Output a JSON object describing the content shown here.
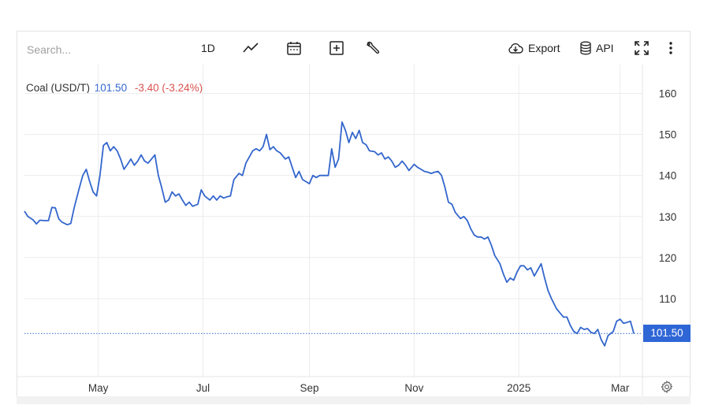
{
  "toolbar": {
    "search_placeholder": "Search...",
    "interval_label": "1D",
    "export_label": "Export",
    "api_label": "API",
    "icons": [
      "line-chart-icon",
      "calendar-icon",
      "add-box-icon",
      "wrench-icon",
      "cloud-download-icon",
      "database-icon",
      "fullscreen-icon",
      "more-vertical-icon",
      "gear-icon"
    ]
  },
  "legend": {
    "name": "Coal (USD/T)",
    "price": "101.50",
    "change": "-3.40 (-3.24%)"
  },
  "price_tag": "101.50",
  "colors": {
    "line": "#3366cc",
    "negative": "#d9534f",
    "price_tag_bg": "#2f66d6",
    "grid": "#ececec"
  },
  "chart_data": {
    "type": "line",
    "title": "",
    "xlabel": "",
    "ylabel": "",
    "ylim": [
      91,
      167
    ],
    "yticks": [
      110,
      120,
      130,
      140,
      150,
      160
    ],
    "xlim": [
      "2024-03-19",
      "2025-03-14"
    ],
    "xticks": [
      {
        "label": "May",
        "date": "2024-05-01"
      },
      {
        "label": "Jul",
        "date": "2024-07-01"
      },
      {
        "label": "Sep",
        "date": "2024-09-01"
      },
      {
        "label": "Nov",
        "date": "2024-11-01"
      },
      {
        "label": "2025",
        "date": "2025-01-01"
      },
      {
        "label": "Mar",
        "date": "2025-03-01"
      }
    ],
    "last_value": 101.5,
    "grid": true,
    "series": [
      {
        "name": "",
        "points": [
          [
            "2024-03-19",
            131.3
          ],
          [
            "2024-03-21",
            130.0
          ],
          [
            "2024-03-24",
            129.2
          ],
          [
            "2024-03-26",
            128.2
          ],
          [
            "2024-03-28",
            129.1
          ],
          [
            "2024-03-31",
            129.0
          ],
          [
            "2024-04-02",
            129.0
          ],
          [
            "2024-04-04",
            132.2
          ],
          [
            "2024-04-06",
            132.1
          ],
          [
            "2024-04-08",
            129.4
          ],
          [
            "2024-04-10",
            128.6
          ],
          [
            "2024-04-13",
            128.0
          ],
          [
            "2024-04-15",
            128.3
          ],
          [
            "2024-04-17",
            132.2
          ],
          [
            "2024-04-20",
            137.0
          ],
          [
            "2024-04-22",
            140.0
          ],
          [
            "2024-04-24",
            141.5
          ],
          [
            "2024-04-26",
            138.5
          ],
          [
            "2024-04-28",
            136.0
          ],
          [
            "2024-04-30",
            135.0
          ],
          [
            "2024-05-02",
            140.0
          ],
          [
            "2024-05-04",
            147.3
          ],
          [
            "2024-05-06",
            148.0
          ],
          [
            "2024-05-08",
            146.0
          ],
          [
            "2024-05-10",
            147.0
          ],
          [
            "2024-05-12",
            146.0
          ],
          [
            "2024-05-14",
            144.0
          ],
          [
            "2024-05-16",
            141.5
          ],
          [
            "2024-05-18",
            142.7
          ],
          [
            "2024-05-20",
            144.0
          ],
          [
            "2024-05-22",
            142.5
          ],
          [
            "2024-05-24",
            143.5
          ],
          [
            "2024-05-26",
            145.0
          ],
          [
            "2024-05-28",
            143.5
          ],
          [
            "2024-05-30",
            143.0
          ],
          [
            "2024-06-01",
            144.0
          ],
          [
            "2024-06-03",
            145.0
          ],
          [
            "2024-06-05",
            140.0
          ],
          [
            "2024-06-07",
            137.0
          ],
          [
            "2024-06-09",
            133.5
          ],
          [
            "2024-06-11",
            134.0
          ],
          [
            "2024-06-13",
            136.0
          ],
          [
            "2024-06-15",
            135.0
          ],
          [
            "2024-06-17",
            135.5
          ],
          [
            "2024-06-19",
            134.0
          ],
          [
            "2024-06-21",
            132.7
          ],
          [
            "2024-06-23",
            133.5
          ],
          [
            "2024-06-25",
            132.5
          ],
          [
            "2024-06-28",
            133.0
          ],
          [
            "2024-06-30",
            136.5
          ],
          [
            "2024-07-02",
            135.0
          ],
          [
            "2024-07-05",
            134.0
          ],
          [
            "2024-07-07",
            135.0
          ],
          [
            "2024-07-09",
            134.0
          ],
          [
            "2024-07-11",
            135.0
          ],
          [
            "2024-07-13",
            134.5
          ],
          [
            "2024-07-15",
            134.8
          ],
          [
            "2024-07-17",
            135.0
          ],
          [
            "2024-07-19",
            139.0
          ],
          [
            "2024-07-22",
            140.5
          ],
          [
            "2024-07-24",
            140.0
          ],
          [
            "2024-07-26",
            143.0
          ],
          [
            "2024-07-28",
            144.5
          ],
          [
            "2024-07-30",
            146.0
          ],
          [
            "2024-08-01",
            146.5
          ],
          [
            "2024-08-03",
            146.0
          ],
          [
            "2024-08-05",
            147.0
          ],
          [
            "2024-08-07",
            150.0
          ],
          [
            "2024-08-09",
            146.3
          ],
          [
            "2024-08-11",
            147.0
          ],
          [
            "2024-08-13",
            146.0
          ],
          [
            "2024-08-15",
            145.5
          ],
          [
            "2024-08-18",
            144.0
          ],
          [
            "2024-08-20",
            144.5
          ],
          [
            "2024-08-22",
            142.0
          ],
          [
            "2024-08-24",
            139.5
          ],
          [
            "2024-08-26",
            141.0
          ],
          [
            "2024-08-28",
            139.0
          ],
          [
            "2024-08-30",
            138.5
          ],
          [
            "2024-09-01",
            138.0
          ],
          [
            "2024-09-03",
            140.0
          ],
          [
            "2024-09-05",
            139.5
          ],
          [
            "2024-09-07",
            140.0
          ],
          [
            "2024-09-09",
            140.0
          ],
          [
            "2024-09-12",
            140.0
          ],
          [
            "2024-09-14",
            146.5
          ],
          [
            "2024-09-16",
            142.0
          ],
          [
            "2024-09-18",
            144.0
          ],
          [
            "2024-09-20",
            153.0
          ],
          [
            "2024-09-22",
            151.0
          ],
          [
            "2024-09-24",
            148.0
          ],
          [
            "2024-09-26",
            150.5
          ],
          [
            "2024-09-28",
            149.0
          ],
          [
            "2024-09-30",
            151.0
          ],
          [
            "2024-10-02",
            148.0
          ],
          [
            "2024-10-04",
            147.5
          ],
          [
            "2024-10-06",
            146.0
          ],
          [
            "2024-10-09",
            145.8
          ],
          [
            "2024-10-11",
            145.0
          ],
          [
            "2024-10-13",
            145.5
          ],
          [
            "2024-10-15",
            144.0
          ],
          [
            "2024-10-17",
            144.5
          ],
          [
            "2024-10-19",
            143.5
          ],
          [
            "2024-10-21",
            142.0
          ],
          [
            "2024-10-23",
            142.5
          ],
          [
            "2024-10-25",
            143.5
          ],
          [
            "2024-10-27",
            142.5
          ],
          [
            "2024-10-29",
            141.2
          ],
          [
            "2024-11-01",
            142.7
          ],
          [
            "2024-11-03",
            142.0
          ],
          [
            "2024-11-05",
            141.5
          ],
          [
            "2024-11-07",
            141.0
          ],
          [
            "2024-11-09",
            140.8
          ],
          [
            "2024-11-11",
            140.5
          ],
          [
            "2024-11-13",
            140.8
          ],
          [
            "2024-11-15",
            141.0
          ],
          [
            "2024-11-17",
            140.0
          ],
          [
            "2024-11-19",
            137.0
          ],
          [
            "2024-11-21",
            133.5
          ],
          [
            "2024-11-23",
            133.0
          ],
          [
            "2024-11-25",
            131.0
          ],
          [
            "2024-11-28",
            129.5
          ],
          [
            "2024-11-30",
            130.0
          ],
          [
            "2024-12-02",
            129.0
          ],
          [
            "2024-12-04",
            127.0
          ],
          [
            "2024-12-06",
            125.5
          ],
          [
            "2024-12-08",
            125.0
          ],
          [
            "2024-12-10",
            125.0
          ],
          [
            "2024-12-12",
            124.5
          ],
          [
            "2024-12-14",
            125.0
          ],
          [
            "2024-12-16",
            123.0
          ],
          [
            "2024-12-18",
            120.5
          ],
          [
            "2024-12-21",
            118.5
          ],
          [
            "2024-12-23",
            116.0
          ],
          [
            "2024-12-25",
            114.0
          ],
          [
            "2024-12-27",
            115.0
          ],
          [
            "2024-12-29",
            114.5
          ],
          [
            "2024-12-31",
            116.5
          ],
          [
            "2025-01-02",
            118.0
          ],
          [
            "2025-01-04",
            118.0
          ],
          [
            "2025-01-06",
            117.0
          ],
          [
            "2025-01-08",
            117.5
          ],
          [
            "2025-01-10",
            115.5
          ],
          [
            "2025-01-12",
            117.0
          ],
          [
            "2025-01-14",
            118.5
          ],
          [
            "2025-01-16",
            115.0
          ],
          [
            "2025-01-18",
            112.0
          ],
          [
            "2025-01-20",
            110.0
          ],
          [
            "2025-01-23",
            107.5
          ],
          [
            "2025-01-25",
            106.5
          ],
          [
            "2025-01-27",
            105.5
          ],
          [
            "2025-01-29",
            105.5
          ],
          [
            "2025-01-31",
            103.5
          ],
          [
            "2025-02-02",
            102.0
          ],
          [
            "2025-02-04",
            101.5
          ],
          [
            "2025-02-06",
            103.0
          ],
          [
            "2025-02-08",
            102.5
          ],
          [
            "2025-02-10",
            102.7
          ],
          [
            "2025-02-12",
            101.8
          ],
          [
            "2025-02-14",
            101.5
          ],
          [
            "2025-02-16",
            102.5
          ],
          [
            "2025-02-18",
            100.0
          ],
          [
            "2025-02-20",
            98.5
          ],
          [
            "2025-02-22",
            101.0
          ],
          [
            "2025-02-25",
            102.0
          ],
          [
            "2025-02-27",
            104.5
          ],
          [
            "2025-03-01",
            105.0
          ],
          [
            "2025-03-03",
            104.0
          ],
          [
            "2025-03-05",
            104.2
          ],
          [
            "2025-03-07",
            104.5
          ],
          [
            "2025-03-09",
            101.5
          ]
        ]
      }
    ]
  }
}
